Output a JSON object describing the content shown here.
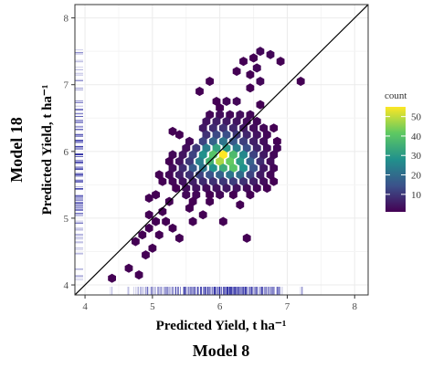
{
  "chart_data": {
    "type": "hexbin",
    "xlabel": "Predicted Yield, t ha⁻¹",
    "ylabel": "Predicted Yield, t ha⁻¹",
    "x_model": "Model 8",
    "y_model": "Model 18",
    "xlim": [
      3.85,
      8.2
    ],
    "ylim": [
      3.85,
      8.2
    ],
    "x_ticks": [
      4,
      5,
      6,
      7,
      8
    ],
    "y_ticks": [
      4,
      5,
      6,
      7,
      8
    ],
    "identity_line": true,
    "grid": true,
    "legend": {
      "title": "count",
      "placement": "right",
      "ticks": [
        10,
        20,
        30,
        40,
        50
      ],
      "min": 1,
      "max": 55
    },
    "colormap": [
      "#440154",
      "#3b528b",
      "#21918c",
      "#5ec962",
      "#fde725"
    ],
    "colors": {
      "rug": "#1a1a9c",
      "panel_border": "#333333",
      "grid": "#ebebeb",
      "identity_line": "#000000"
    },
    "hex_radius_data": 0.06,
    "hexes": [
      [
        6.6,
        7.5,
        2
      ],
      [
        6.75,
        7.45,
        2
      ],
      [
        6.5,
        7.4,
        1
      ],
      [
        6.35,
        7.35,
        1
      ],
      [
        6.9,
        7.35,
        1
      ],
      [
        6.55,
        7.25,
        2
      ],
      [
        6.25,
        7.2,
        1
      ],
      [
        6.45,
        7.15,
        1
      ],
      [
        7.2,
        7.05,
        1
      ],
      [
        5.85,
        7.05,
        1
      ],
      [
        6.6,
        7.05,
        2
      ],
      [
        6.45,
        6.95,
        1
      ],
      [
        6.25,
        6.75,
        2
      ],
      [
        6.1,
        6.75,
        2
      ],
      [
        5.95,
        6.75,
        1
      ],
      [
        6.6,
        6.7,
        1
      ],
      [
        6.0,
        6.65,
        1
      ],
      [
        5.85,
        6.55,
        2
      ],
      [
        6.0,
        6.55,
        3
      ],
      [
        6.15,
        6.55,
        2
      ],
      [
        6.3,
        6.55,
        3
      ],
      [
        6.45,
        6.55,
        2
      ],
      [
        5.8,
        6.45,
        4
      ],
      [
        5.95,
        6.45,
        6
      ],
      [
        6.1,
        6.45,
        5
      ],
      [
        6.25,
        6.45,
        4
      ],
      [
        6.4,
        6.45,
        3
      ],
      [
        6.55,
        6.45,
        2
      ],
      [
        5.75,
        6.35,
        5
      ],
      [
        5.9,
        6.35,
        8
      ],
      [
        6.05,
        6.35,
        9
      ],
      [
        6.2,
        6.35,
        7
      ],
      [
        6.35,
        6.35,
        5
      ],
      [
        6.5,
        6.35,
        3
      ],
      [
        6.65,
        6.35,
        2
      ],
      [
        6.8,
        6.35,
        1
      ],
      [
        5.8,
        6.25,
        9
      ],
      [
        5.95,
        6.25,
        13
      ],
      [
        6.1,
        6.25,
        14
      ],
      [
        6.25,
        6.25,
        10
      ],
      [
        6.4,
        6.25,
        7
      ],
      [
        6.55,
        6.25,
        4
      ],
      [
        6.7,
        6.25,
        2
      ],
      [
        5.4,
        6.25,
        1
      ],
      [
        5.75,
        6.15,
        12
      ],
      [
        5.9,
        6.15,
        18
      ],
      [
        6.05,
        6.15,
        22
      ],
      [
        6.2,
        6.15,
        16
      ],
      [
        6.35,
        6.15,
        11
      ],
      [
        6.5,
        6.15,
        6
      ],
      [
        6.65,
        6.15,
        3
      ],
      [
        6.85,
        6.15,
        1
      ],
      [
        5.55,
        6.15,
        2
      ],
      [
        5.65,
        6.05,
        10
      ],
      [
        5.8,
        6.05,
        24
      ],
      [
        5.95,
        6.05,
        32
      ],
      [
        6.1,
        6.05,
        30
      ],
      [
        6.25,
        6.05,
        24
      ],
      [
        6.4,
        6.05,
        14
      ],
      [
        6.55,
        6.05,
        7
      ],
      [
        6.7,
        6.05,
        3
      ],
      [
        6.85,
        6.05,
        2
      ],
      [
        5.5,
        6.05,
        3
      ],
      [
        5.6,
        5.95,
        12
      ],
      [
        5.75,
        5.95,
        28
      ],
      [
        5.9,
        5.95,
        40
      ],
      [
        6.05,
        5.95,
        55
      ],
      [
        6.2,
        5.95,
        38
      ],
      [
        6.35,
        5.95,
        26
      ],
      [
        6.5,
        5.95,
        12
      ],
      [
        6.65,
        5.95,
        5
      ],
      [
        6.8,
        5.95,
        2
      ],
      [
        5.45,
        5.95,
        4
      ],
      [
        5.3,
        5.95,
        2
      ],
      [
        5.55,
        5.85,
        10
      ],
      [
        5.7,
        5.85,
        24
      ],
      [
        5.85,
        5.85,
        36
      ],
      [
        6.0,
        5.85,
        48
      ],
      [
        6.15,
        5.85,
        42
      ],
      [
        6.3,
        5.85,
        30
      ],
      [
        6.45,
        5.85,
        18
      ],
      [
        6.6,
        5.85,
        8
      ],
      [
        6.75,
        5.85,
        3
      ],
      [
        5.4,
        5.85,
        4
      ],
      [
        5.25,
        5.85,
        1
      ],
      [
        5.45,
        5.75,
        8
      ],
      [
        5.6,
        5.75,
        16
      ],
      [
        5.75,
        5.75,
        22
      ],
      [
        5.9,
        5.75,
        28
      ],
      [
        6.05,
        5.75,
        34
      ],
      [
        6.2,
        5.75,
        40
      ],
      [
        6.35,
        5.75,
        28
      ],
      [
        6.5,
        5.75,
        15
      ],
      [
        6.65,
        5.75,
        5
      ],
      [
        6.8,
        5.75,
        2
      ],
      [
        5.3,
        5.75,
        3
      ],
      [
        5.4,
        5.65,
        6
      ],
      [
        5.55,
        5.65,
        9
      ],
      [
        5.7,
        5.65,
        12
      ],
      [
        5.85,
        5.65,
        15
      ],
      [
        6.0,
        5.65,
        18
      ],
      [
        6.15,
        5.65,
        22
      ],
      [
        6.3,
        5.65,
        20
      ],
      [
        6.45,
        5.65,
        12
      ],
      [
        6.6,
        5.65,
        5
      ],
      [
        6.75,
        5.65,
        2
      ],
      [
        5.25,
        5.65,
        2
      ],
      [
        5.1,
        5.65,
        1
      ],
      [
        5.45,
        5.55,
        4
      ],
      [
        5.6,
        5.55,
        6
      ],
      [
        5.75,
        5.55,
        8
      ],
      [
        5.9,
        5.55,
        9
      ],
      [
        6.05,
        5.55,
        10
      ],
      [
        6.2,
        5.55,
        11
      ],
      [
        6.35,
        5.55,
        9
      ],
      [
        6.5,
        5.55,
        6
      ],
      [
        6.65,
        5.55,
        3
      ],
      [
        6.8,
        5.55,
        1
      ],
      [
        5.3,
        5.55,
        2
      ],
      [
        5.15,
        5.55,
        1
      ],
      [
        5.5,
        5.45,
        3
      ],
      [
        5.65,
        5.45,
        4
      ],
      [
        5.8,
        5.45,
        3
      ],
      [
        5.95,
        5.45,
        4
      ],
      [
        6.1,
        5.45,
        5
      ],
      [
        6.25,
        5.45,
        4
      ],
      [
        6.4,
        5.45,
        3
      ],
      [
        6.55,
        5.45,
        2
      ],
      [
        6.7,
        5.45,
        1
      ],
      [
        5.35,
        5.45,
        1
      ],
      [
        5.5,
        5.35,
        2
      ],
      [
        5.65,
        5.35,
        2
      ],
      [
        5.85,
        5.35,
        1
      ],
      [
        6.0,
        5.35,
        2
      ],
      [
        6.2,
        5.35,
        1
      ],
      [
        6.45,
        5.35,
        1
      ],
      [
        5.05,
        5.35,
        1
      ],
      [
        4.95,
        5.3,
        1
      ],
      [
        5.25,
        5.25,
        1
      ],
      [
        5.6,
        5.25,
        1
      ],
      [
        5.85,
        5.25,
        1
      ],
      [
        6.3,
        5.2,
        1
      ],
      [
        5.55,
        5.15,
        1
      ],
      [
        5.15,
        5.1,
        1
      ],
      [
        4.95,
        5.05,
        1
      ],
      [
        5.75,
        5.05,
        1
      ],
      [
        5.2,
        4.95,
        1
      ],
      [
        5.05,
        4.95,
        1
      ],
      [
        4.95,
        4.85,
        1
      ],
      [
        5.3,
        4.85,
        1
      ],
      [
        6.05,
        4.95,
        1
      ],
      [
        5.6,
        4.95,
        1
      ],
      [
        4.85,
        4.75,
        1
      ],
      [
        5.1,
        4.75,
        1
      ],
      [
        5.4,
        4.7,
        1
      ],
      [
        6.4,
        4.7,
        1
      ],
      [
        4.75,
        4.65,
        1
      ],
      [
        5.0,
        4.55,
        1
      ],
      [
        4.9,
        4.45,
        1
      ],
      [
        4.65,
        4.25,
        1
      ],
      [
        4.8,
        4.15,
        1
      ],
      [
        4.4,
        4.1,
        1
      ],
      [
        5.3,
        6.3,
        1
      ],
      [
        5.7,
        6.9,
        1
      ]
    ],
    "rug_x": [
      4.4,
      4.65,
      4.75,
      4.8,
      4.85,
      4.9,
      4.95,
      4.95,
      5.0,
      5.05,
      5.1,
      5.15,
      5.2,
      5.25,
      5.3,
      5.35,
      5.4,
      5.45,
      5.5,
      5.55,
      5.6,
      5.65,
      5.7,
      5.75,
      5.8,
      5.85,
      5.9,
      5.95,
      6.0,
      6.05,
      6.1,
      6.15,
      6.2,
      6.25,
      6.3,
      6.35,
      6.4,
      6.45,
      6.5,
      6.55,
      6.6,
      6.65,
      6.7,
      6.75,
      6.8,
      6.85,
      6.9,
      7.2
    ],
    "rug_y": [
      4.1,
      4.15,
      4.25,
      4.45,
      4.55,
      4.65,
      4.7,
      4.75,
      4.85,
      4.95,
      5.05,
      5.1,
      5.15,
      5.2,
      5.25,
      5.3,
      5.35,
      5.45,
      5.55,
      5.65,
      5.75,
      5.85,
      5.95,
      6.05,
      6.15,
      6.25,
      6.35,
      6.45,
      6.55,
      6.65,
      6.75,
      6.95,
      7.05,
      7.15,
      7.25,
      7.35,
      7.45,
      7.5
    ]
  }
}
